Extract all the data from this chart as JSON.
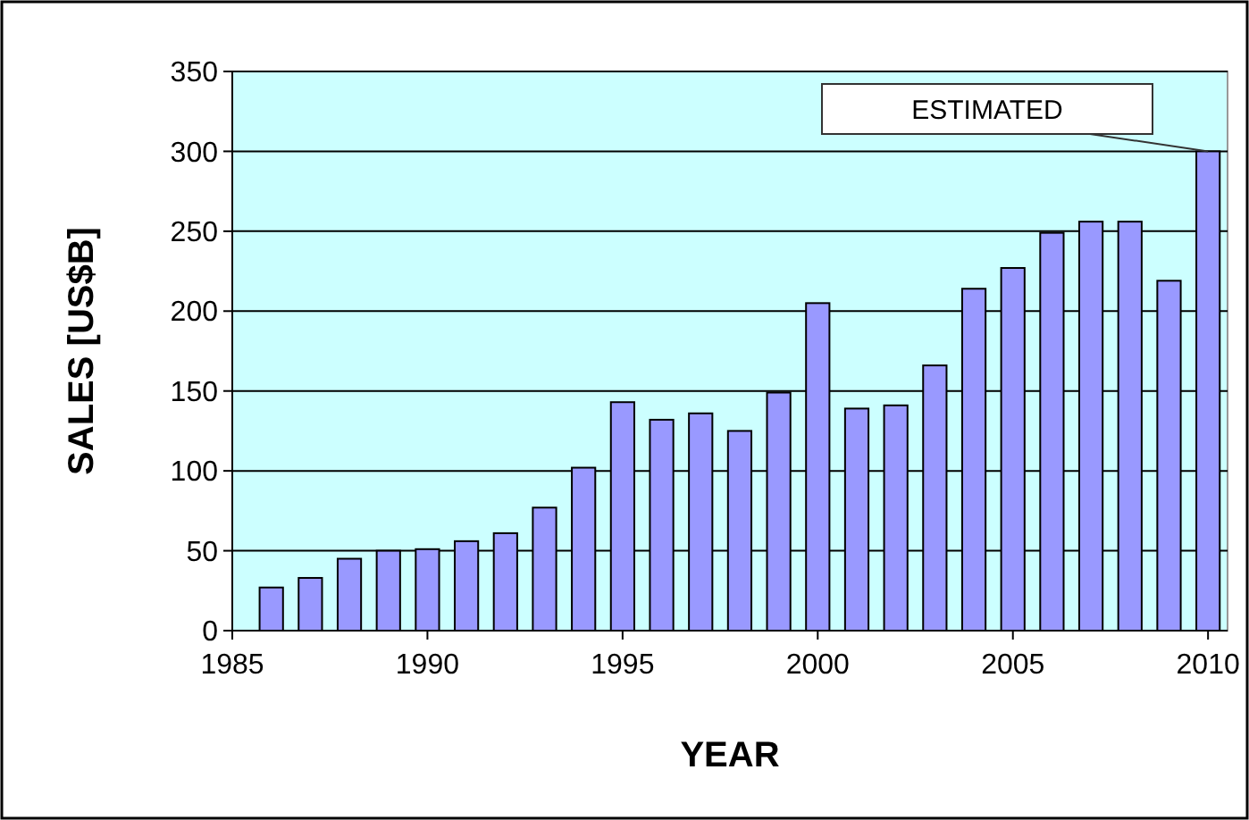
{
  "chart_data": {
    "type": "bar",
    "xlabel": "YEAR",
    "ylabel": "SALES [US$B]",
    "x": [
      1986,
      1987,
      1988,
      1989,
      1990,
      1991,
      1992,
      1993,
      1994,
      1995,
      1996,
      1997,
      1998,
      1999,
      2000,
      2001,
      2002,
      2003,
      2004,
      2005,
      2006,
      2007,
      2008,
      2009,
      2010
    ],
    "values": [
      27,
      33,
      45,
      50,
      51,
      56,
      61,
      77,
      102,
      143,
      132,
      136,
      125,
      149,
      205,
      139,
      141,
      166,
      214,
      227,
      249,
      256,
      256,
      219,
      300
    ],
    "color": "#9999ff",
    "xlim": [
      1985,
      2010.5
    ],
    "xticks": [
      1985,
      1990,
      1995,
      2000,
      2005,
      2010
    ],
    "ylim": [
      0,
      350
    ],
    "yticks": [
      0,
      50,
      100,
      150,
      200,
      250,
      300,
      350
    ],
    "grid": "y",
    "annotations": [
      {
        "text": "ESTIMATED",
        "x": 2010,
        "y": 300
      }
    ]
  }
}
